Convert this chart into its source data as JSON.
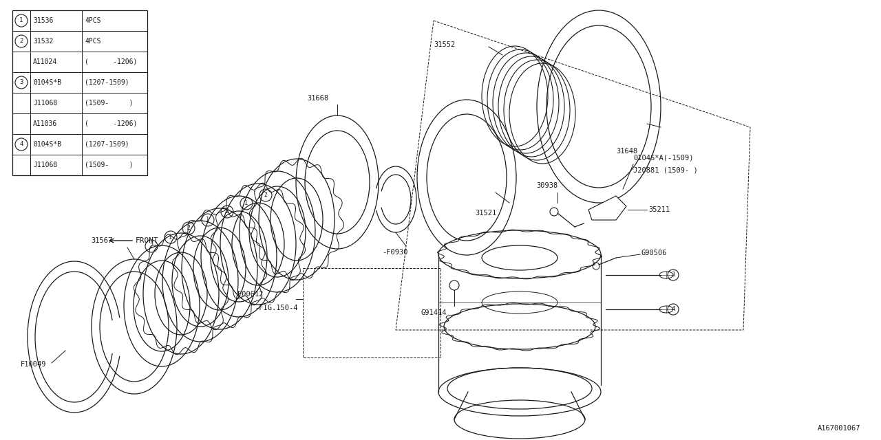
{
  "bg_color": "#ffffff",
  "line_color": "#1a1a1a",
  "fig_id": "A167001067",
  "table_rows": [
    {
      "num": "1",
      "part": "31536",
      "qty": "4PCS"
    },
    {
      "num": "2",
      "part": "31532",
      "qty": "4PCS"
    },
    {
      "num": "",
      "part": "A11024",
      "qty": "(      -1206)"
    },
    {
      "num": "3",
      "part": "0104S*B",
      "qty": "(1207-1509)"
    },
    {
      "num": "",
      "part": "J11068",
      "qty": "(1509-     )"
    },
    {
      "num": "",
      "part": "A11036",
      "qty": "(      -1206)"
    },
    {
      "num": "4",
      "part": "0104S*B",
      "qty": "(1207-1509)"
    },
    {
      "num": "",
      "part": "J11068",
      "qty": "(1509-     )"
    }
  ]
}
